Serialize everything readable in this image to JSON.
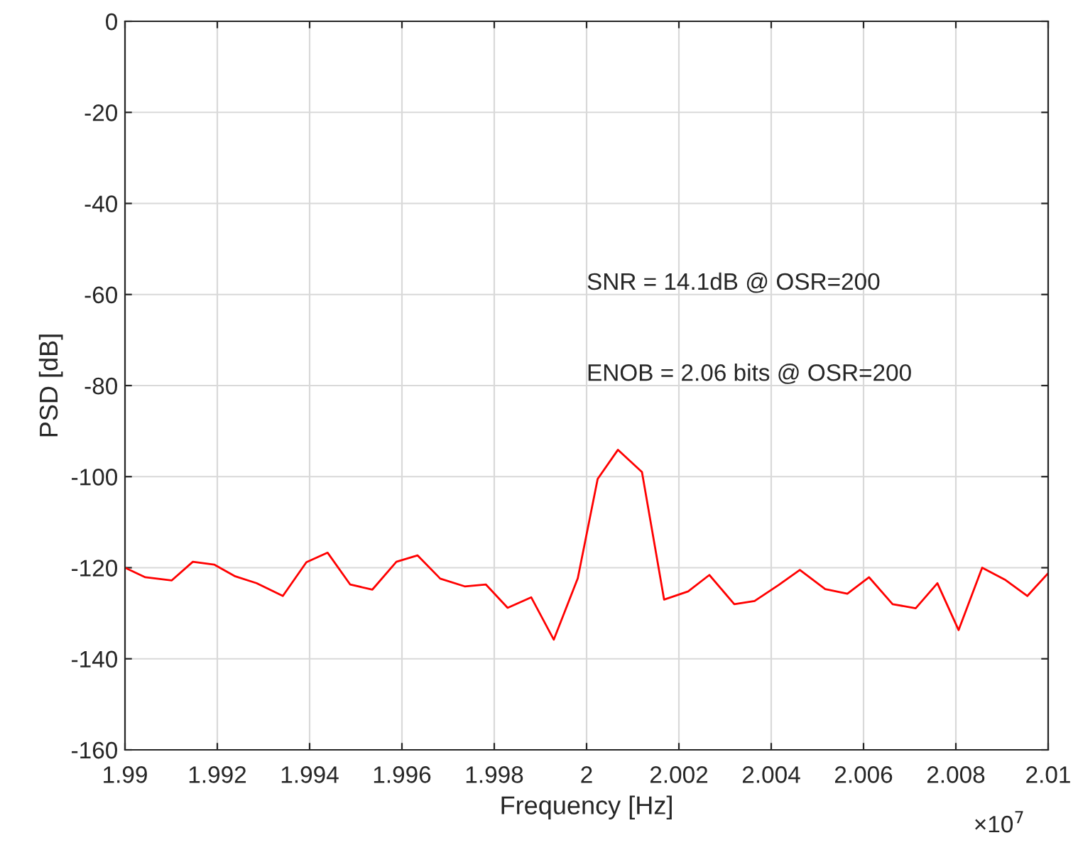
{
  "chart_data": {
    "type": "line",
    "xlabel": "Frequency [Hz]",
    "ylabel": "PSD [dB]",
    "annotations": [
      "SNR = 14.1dB @ OSR=200",
      "ENOB = 2.06 bits @ OSR=200",
      "×10$^{7}$"
    ],
    "x": [
      1.99,
      1.99044,
      1.99101,
      1.99147,
      1.99193,
      1.99239,
      1.99285,
      1.99342,
      1.99393,
      1.99439,
      1.99488,
      1.99536,
      1.99588,
      1.99634,
      1.99683,
      1.99736,
      1.99782,
      1.99829,
      1.9988,
      1.99929,
      1.99981,
      2.00024,
      2.00068,
      2.0012,
      2.00168,
      2.0022,
      2.00266,
      2.0032,
      2.00364,
      2.00416,
      2.00462,
      2.00517,
      2.00565,
      2.00612,
      2.00663,
      2.00713,
      2.0076,
      2.00806,
      2.00857,
      2.00906,
      2.00955,
      2.01
    ],
    "series": [
      {
        "color": "#ff0000",
        "values": [
          -120,
          -122.1,
          -122.8,
          -118.7,
          -119.3,
          -121.9,
          -123.4,
          -126.2,
          -118.8,
          -116.7,
          -123.7,
          -124.8,
          -118.7,
          -117.3,
          -122.4,
          -124.1,
          -123.7,
          -128.8,
          -126.5,
          -135.8,
          -122.3,
          -100.5,
          -94.1,
          -99.0,
          -127.0,
          -125.2,
          -121.6,
          -128.0,
          -127.3,
          -123.8,
          -120.5,
          -124.7,
          -125.7,
          -122.1,
          -128.0,
          -128.9,
          -123.4,
          -133.7,
          -120.0,
          -122.6,
          -126.2,
          -121.2
        ]
      }
    ],
    "xlim": [
      1.99,
      2.01
    ],
    "xticks": [
      1.99,
      1.992,
      1.994,
      1.996,
      1.998,
      2,
      2.002,
      2.004,
      2.006,
      2.008,
      2.01
    ],
    "ylim": [
      -160,
      0
    ],
    "yticks": [
      -160,
      -140,
      -120,
      -100,
      -80,
      -60,
      -40,
      -20,
      0
    ],
    "grid": true,
    "line_style": "solid",
    "marker": "none"
  }
}
